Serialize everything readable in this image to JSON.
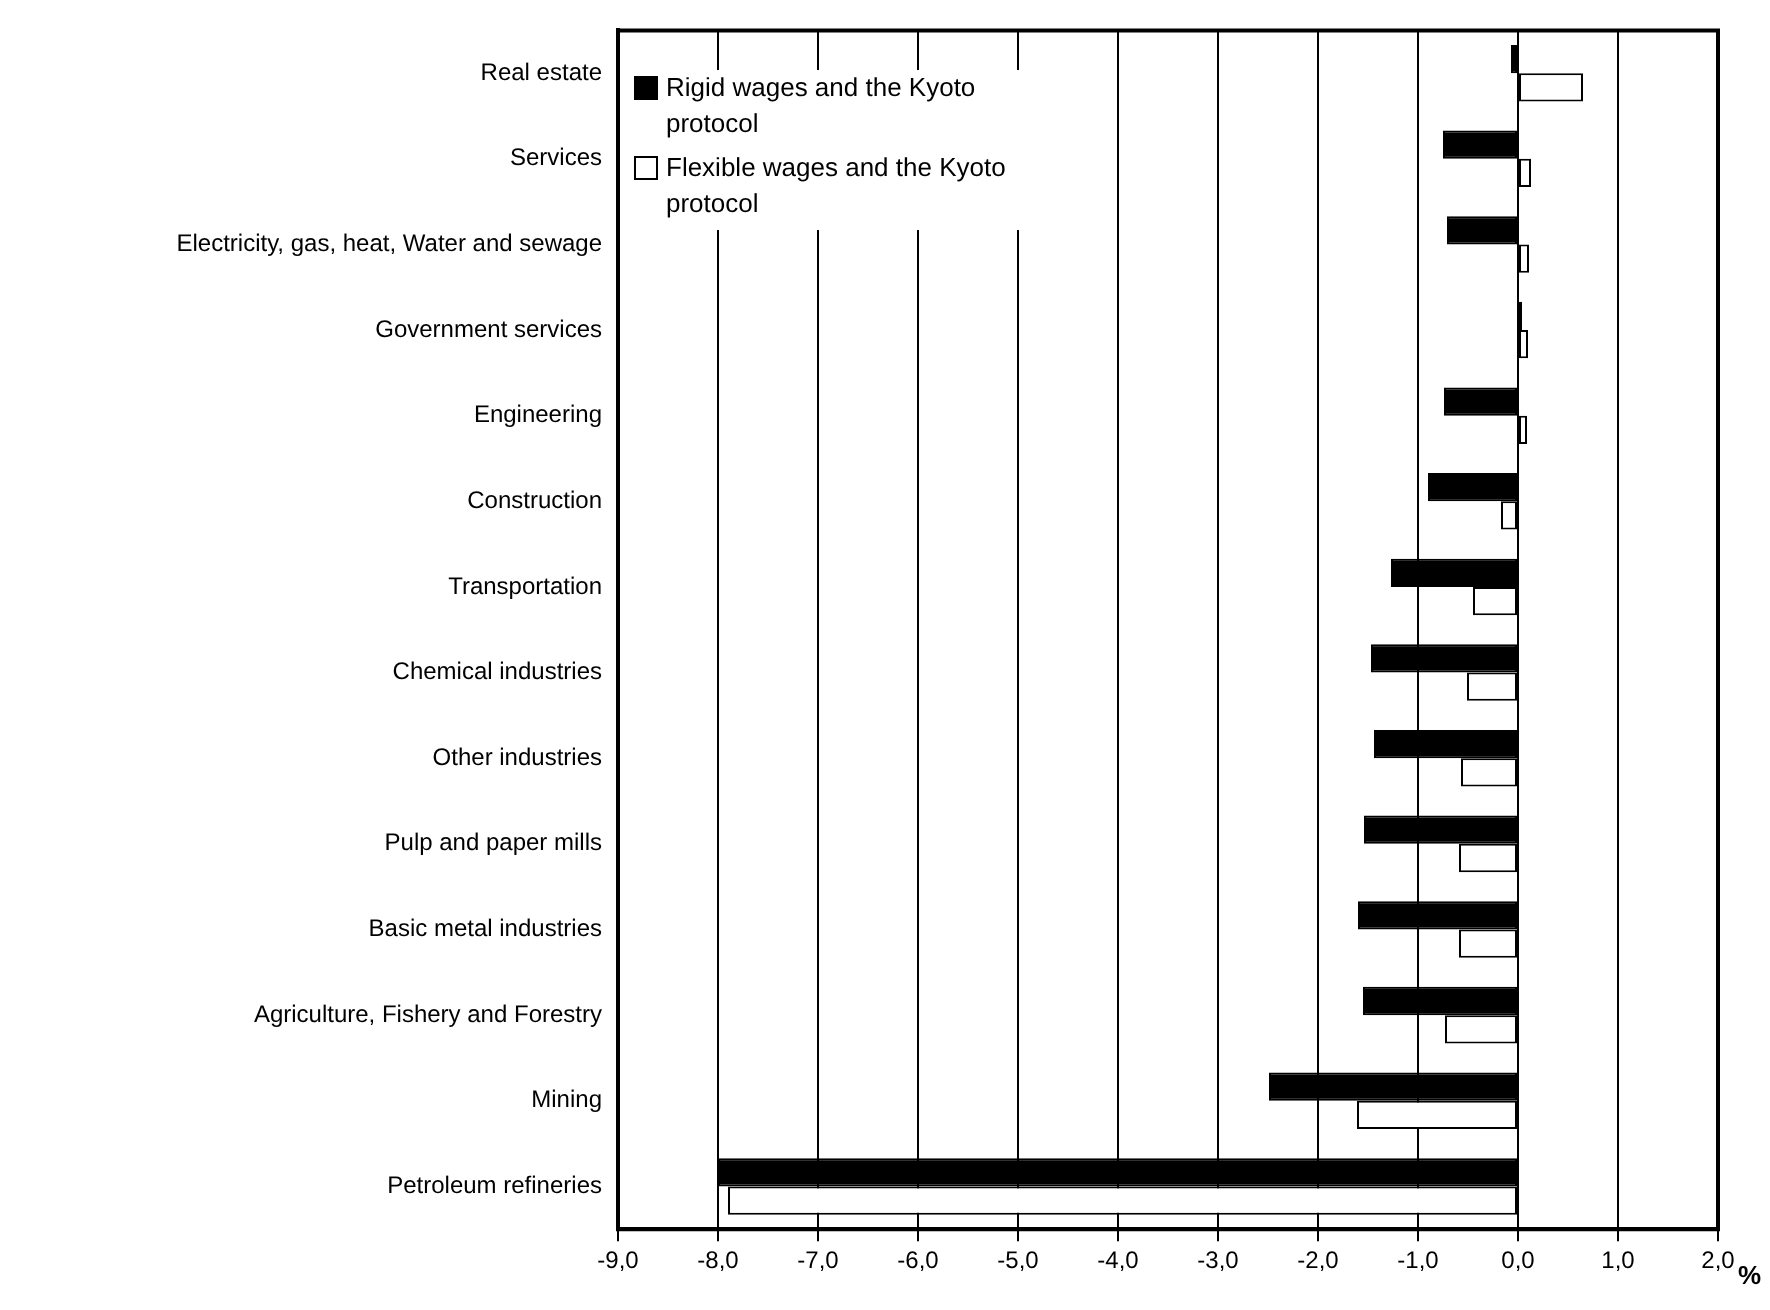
{
  "chart_data": {
    "type": "bar",
    "orientation": "horizontal",
    "xlabel": "%",
    "categories": [
      "Real estate",
      "Services",
      "Electricity, gas, heat, Water and sewage",
      "Government services",
      "Engineering",
      "Construction",
      "Transportation",
      "Chemical industries",
      "Other industries",
      "Pulp and paper mills",
      "Basic metal industries",
      "Agriculture, Fishery and Forestry",
      "Mining",
      "Petroleum refineries"
    ],
    "series": [
      {
        "name": "Rigid wages and the Kyoto protocol",
        "color": "#000000",
        "values": [
          -0.07,
          -0.75,
          -0.71,
          0.04,
          -0.74,
          -0.9,
          -1.27,
          -1.47,
          -1.44,
          -1.54,
          -1.6,
          -1.55,
          -2.49,
          -8.0
        ]
      },
      {
        "name": "Flexible wages and the Kyoto protocol",
        "color": "#ffffff",
        "values": [
          0.65,
          0.13,
          0.11,
          0.1,
          0.09,
          -0.17,
          -0.45,
          -0.51,
          -0.57,
          -0.59,
          -0.59,
          -0.73,
          -1.61,
          -7.9
        ]
      }
    ],
    "xlim": [
      -9,
      2
    ],
    "xticks": [
      {
        "value": -9,
        "label": "-9,0"
      },
      {
        "value": -8,
        "label": "-8,0"
      },
      {
        "value": -7,
        "label": "-7,0"
      },
      {
        "value": -6,
        "label": "-6,0"
      },
      {
        "value": -5,
        "label": "-5,0"
      },
      {
        "value": -4,
        "label": "-4,0"
      },
      {
        "value": -3,
        "label": "-3,0"
      },
      {
        "value": -2,
        "label": "-2,0"
      },
      {
        "value": -1,
        "label": "-1,0"
      },
      {
        "value": 0,
        "label": "0,0"
      },
      {
        "value": 1,
        "label": "1,0"
      },
      {
        "value": 2,
        "label": "2,0"
      }
    ],
    "grid": "x",
    "legend": "top left"
  }
}
